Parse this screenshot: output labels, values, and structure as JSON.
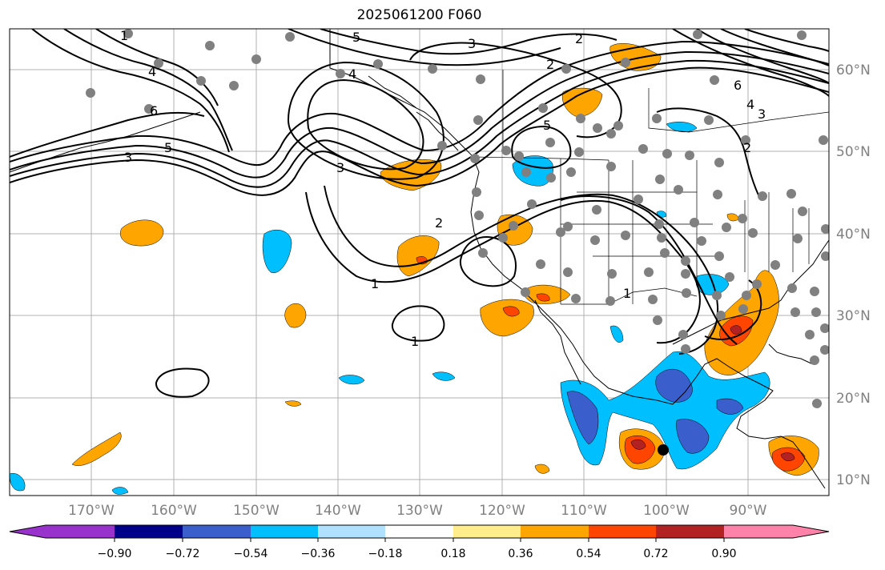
{
  "title": "2025061200 F060",
  "longitude_labels": [
    "170°W",
    "160°W",
    "150°W",
    "140°W",
    "130°W",
    "120°W",
    "110°W",
    "100°W",
    "90°W"
  ],
  "latitude_labels": [
    "60°N",
    "50°N",
    "40°N",
    "30°N",
    "20°N",
    "10°N"
  ],
  "contour_labels": [
    "1",
    "1",
    "1",
    "1",
    "2",
    "2",
    "2",
    "2",
    "3",
    "3",
    "3",
    "3",
    "4",
    "4",
    "4",
    "5",
    "5",
    "5",
    "6",
    "6"
  ],
  "colorbar": {
    "tick_labels": [
      "−0.90",
      "−0.72",
      "−0.54",
      "−0.36",
      "−0.18",
      "0.18",
      "0.36",
      "0.54",
      "0.72",
      "0.90"
    ],
    "colors": [
      "#9932cc",
      "#00008b",
      "#3a5fcd",
      "#00bfff",
      "#b0e2ff",
      "#ffffff",
      "#ffec8b",
      "#ffa500",
      "#ff4500",
      "#b22222",
      "#ff82ab"
    ]
  },
  "fill_colors": {
    "yellow": "#ffec8b",
    "orange": "#ffa500",
    "red": "#ff4500",
    "darkred": "#b22222",
    "lightblue": "#b0e2ff",
    "cyan": "#00bfff",
    "blue": "#3a5fcd",
    "navy": "#00008b"
  },
  "marker_color": "#808080"
}
